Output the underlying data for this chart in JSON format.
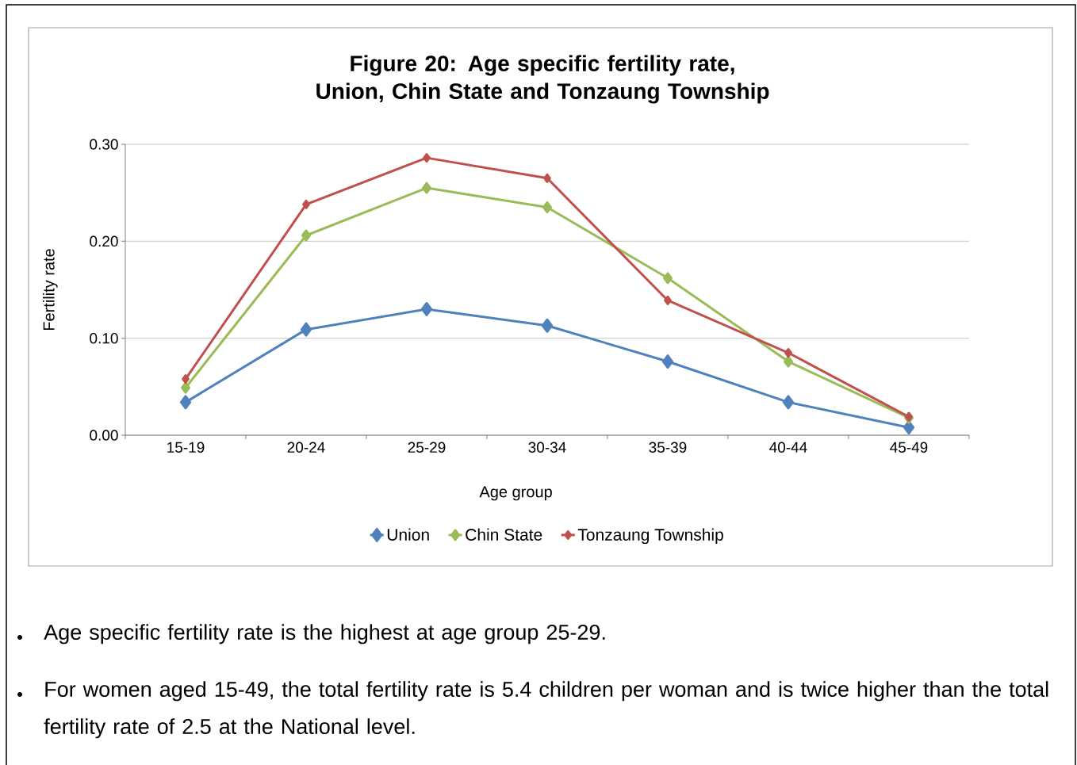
{
  "chart_data": {
    "type": "line",
    "title": "Figure 20: Age specific fertility rate, Union, Chin State and Tonzaung Township",
    "xlabel": "Age group",
    "ylabel": "Fertility rate",
    "categories": [
      "15-19",
      "20-24",
      "25-29",
      "30-34",
      "35-39",
      "40-44",
      "45-49"
    ],
    "series": [
      {
        "name": "Union",
        "color": "#4f81bd",
        "values": [
          0.034,
          0.109,
          0.13,
          0.113,
          0.076,
          0.034,
          0.008
        ]
      },
      {
        "name": "Chin State",
        "color": "#9bbb59",
        "values": [
          0.049,
          0.206,
          0.255,
          0.235,
          0.162,
          0.076,
          0.018
        ]
      },
      {
        "name": "Tonzaung Township",
        "color": "#c0504d",
        "values": [
          0.058,
          0.238,
          0.286,
          0.265,
          0.139,
          0.085,
          0.019
        ]
      }
    ],
    "ylim": [
      0,
      0.3
    ],
    "yticks": [
      {
        "value": 0,
        "label": "0.00"
      },
      {
        "value": 0.1,
        "label": "0.10"
      },
      {
        "value": 0.2,
        "label": "0.20"
      },
      {
        "value": 0.3,
        "label": "0.30"
      }
    ],
    "grid": "y",
    "legend": "bottom",
    "marker": "diamond",
    "line_style": "solid",
    "annotations": [
      "Age specific fertility rate is the highest at age group 25-29.",
      "For women aged 15-49, the total fertility rate is 5.4 children per woman and is twice higher than the total fertility rate of 2.5 at the National level."
    ]
  }
}
